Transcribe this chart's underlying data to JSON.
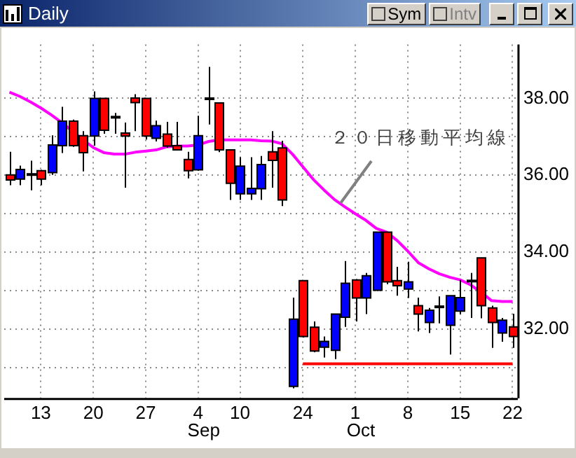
{
  "chart_data": {
    "type": "candlestick",
    "title": "Daily",
    "categories": [
      null,
      null,
      null,
      "13",
      null,
      null,
      null,
      null,
      "20",
      null,
      null,
      null,
      null,
      "27",
      null,
      null,
      null,
      null,
      "4",
      null,
      null,
      null,
      "10",
      null,
      null,
      null,
      null,
      null,
      "24",
      null,
      null,
      null,
      null,
      "1",
      null,
      null,
      null,
      null,
      "8",
      null,
      null,
      null,
      null,
      "15",
      null,
      null,
      null,
      null,
      "22"
    ],
    "ohlc": [
      [
        36.01,
        36.61,
        35.74,
        35.88
      ],
      [
        35.9,
        36.25,
        35.74,
        36.15
      ],
      [
        36.02,
        36.38,
        35.61,
        36.02
      ],
      [
        36.12,
        36.14,
        35.74,
        35.9
      ],
      [
        36.07,
        37.04,
        36.01,
        36.79
      ],
      [
        36.77,
        37.78,
        36.58,
        37.41
      ],
      [
        37.41,
        37.45,
        36.74,
        36.77
      ],
      [
        37.03,
        37.15,
        36.1,
        36.59
      ],
      [
        37.02,
        38.18,
        36.77,
        38.0
      ],
      [
        38.0,
        38.0,
        37.08,
        37.17
      ],
      [
        37.51,
        37.62,
        37.08,
        37.51
      ],
      [
        37.1,
        37.37,
        35.68,
        37.02
      ],
      [
        38.01,
        38.11,
        37.15,
        37.89
      ],
      [
        38.0,
        38.0,
        36.93,
        37.02
      ],
      [
        36.96,
        37.42,
        36.88,
        37.29
      ],
      [
        37.07,
        37.39,
        36.72,
        36.76
      ],
      [
        36.77,
        37.39,
        36.66,
        36.66
      ],
      [
        36.41,
        36.61,
        35.92,
        36.12
      ],
      [
        36.14,
        37.55,
        36.12,
        37.03
      ],
      [
        37.99,
        38.82,
        37.32,
        37.99
      ],
      [
        37.88,
        37.88,
        36.6,
        36.66
      ],
      [
        36.66,
        36.66,
        35.36,
        35.79
      ],
      [
        35.52,
        36.47,
        35.36,
        36.24
      ],
      [
        35.52,
        36.47,
        35.36,
        35.66
      ],
      [
        35.65,
        36.5,
        35.36,
        36.28
      ],
      [
        36.61,
        37.15,
        35.68,
        36.39
      ],
      [
        36.71,
        36.9,
        35.2,
        35.36
      ],
      [
        30.51,
        32.82,
        30.46,
        32.26
      ],
      [
        33.26,
        33.26,
        31.78,
        31.81
      ],
      [
        32.05,
        32.2,
        31.4,
        31.43
      ],
      [
        31.53,
        31.81,
        31.26,
        31.68
      ],
      [
        31.45,
        32.39,
        31.22,
        32.39
      ],
      [
        32.31,
        33.77,
        32.06,
        33.19
      ],
      [
        33.28,
        33.3,
        32.2,
        32.81
      ],
      [
        32.81,
        33.46,
        32.39,
        33.39
      ],
      [
        33.01,
        34.52,
        32.99,
        34.52
      ],
      [
        34.52,
        34.52,
        33.17,
        33.23
      ],
      [
        33.26,
        33.62,
        32.87,
        33.13
      ],
      [
        33.04,
        33.75,
        32.81,
        33.23
      ],
      [
        32.61,
        32.82,
        31.94,
        32.39
      ],
      [
        32.17,
        32.55,
        31.9,
        32.49
      ],
      [
        32.58,
        32.85,
        32.15,
        32.58
      ],
      [
        32.1,
        32.87,
        31.34,
        32.87
      ],
      [
        32.47,
        33.28,
        32.39,
        32.82
      ],
      [
        33.25,
        33.46,
        32.29,
        33.25
      ],
      [
        33.85,
        33.85,
        32.28,
        32.61
      ],
      [
        32.55,
        32.61,
        31.51,
        32.17
      ],
      [
        31.9,
        32.29,
        31.67,
        32.23
      ],
      [
        32.06,
        32.4,
        31.51,
        31.81
      ]
    ],
    "colors": [
      "#ff0000",
      "#0000ff",
      "#000000",
      "#ff0000",
      "#0000ff",
      "#0000ff",
      "#ff0000",
      "#ff0000",
      "#0000ff",
      "#ff0000",
      "#000000",
      "#ff0000",
      "#ff0000",
      "#ff0000",
      "#0000ff",
      "#ff0000",
      "#ff0000",
      "#ff0000",
      "#0000ff",
      "#000000",
      "#ff0000",
      "#ff0000",
      "#0000ff",
      "#0000ff",
      "#0000ff",
      "#ff0000",
      "#ff0000",
      "#0000ff",
      "#ff0000",
      "#ff0000",
      "#0000ff",
      "#0000ff",
      "#0000ff",
      "#ff0000",
      "#0000ff",
      "#0000ff",
      "#ff0000",
      "#ff0000",
      "#0000ff",
      "#ff0000",
      "#0000ff",
      "#000000",
      "#0000ff",
      "#0000ff",
      "#000000",
      "#ff0000",
      "#ff0000",
      "#0000ff",
      "#ff0000"
    ],
    "series": [
      {
        "type": "line",
        "color": "#ff00ff",
        "values": [
          38.16,
          38.05,
          37.91,
          37.75,
          37.57,
          37.37,
          37.15,
          36.93,
          36.72,
          36.59,
          36.55,
          36.55,
          36.6,
          36.63,
          36.66,
          36.74,
          36.76,
          36.76,
          36.79,
          36.88,
          36.92,
          36.92,
          36.92,
          36.92,
          36.9,
          36.89,
          36.82,
          36.55,
          36.22,
          35.89,
          35.62,
          35.37,
          35.18,
          35.0,
          34.83,
          34.62,
          34.52,
          34.3,
          34.03,
          33.73,
          33.57,
          33.44,
          33.35,
          33.28,
          33.15,
          32.96,
          32.74,
          32.72,
          32.72
        ]
      },
      {
        "type": "line",
        "color": "#ff0000",
        "values": [
          null,
          null,
          null,
          null,
          null,
          null,
          null,
          null,
          null,
          null,
          null,
          null,
          null,
          null,
          null,
          null,
          null,
          null,
          null,
          null,
          null,
          null,
          null,
          null,
          null,
          null,
          null,
          null,
          31.1,
          31.1,
          31.1,
          31.1,
          31.1,
          31.1,
          31.1,
          31.1,
          31.1,
          31.1,
          31.1,
          31.1,
          31.1,
          31.1,
          31.1,
          31.1,
          31.1,
          31.1,
          31.1,
          31.1,
          31.1
        ]
      }
    ],
    "ylim": [
      30.2,
      39.4
    ],
    "yticks": [
      {
        "value": 31,
        "label": null
      },
      {
        "value": 32,
        "label": "32.00"
      },
      {
        "value": 33,
        "label": null
      },
      {
        "value": 34,
        "label": "34.00"
      },
      {
        "value": 35,
        "label": null
      },
      {
        "value": 36,
        "label": "36.00"
      },
      {
        "value": 37,
        "label": null
      },
      {
        "value": 38,
        "label": "38.00"
      }
    ],
    "grid": true,
    "annotations": [
      "２０日移動平均線",
      "Sym",
      "Intv",
      "Sep",
      "Oct"
    ]
  }
}
